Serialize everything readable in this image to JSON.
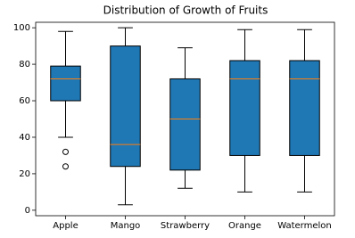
{
  "chart_data": {
    "type": "box",
    "title": "Distribution of Growth of Fruits",
    "categories": [
      "Apple",
      "Mango",
      "Strawberry",
      "Orange",
      "Watermelon"
    ],
    "boxes": [
      {
        "whislo": 40,
        "q1": 60,
        "med": 72,
        "q3": 79,
        "whishi": 98,
        "fliers": [
          32,
          24
        ]
      },
      {
        "whislo": 3,
        "q1": 24,
        "med": 36,
        "q3": 90,
        "whishi": 100,
        "fliers": []
      },
      {
        "whislo": 12,
        "q1": 22,
        "med": 50,
        "q3": 72,
        "whishi": 89,
        "fliers": []
      },
      {
        "whislo": 10,
        "q1": 30,
        "med": 72,
        "q3": 82,
        "whishi": 99,
        "fliers": []
      },
      {
        "whislo": 10,
        "q1": 30,
        "med": 72,
        "q3": 82,
        "whishi": 99,
        "fliers": []
      }
    ],
    "color": "#1f77b4",
    "median_color": "#ff7f0e",
    "ylim": [
      -3,
      103
    ],
    "yticks": [
      0,
      20,
      40,
      60,
      80,
      100
    ]
  }
}
